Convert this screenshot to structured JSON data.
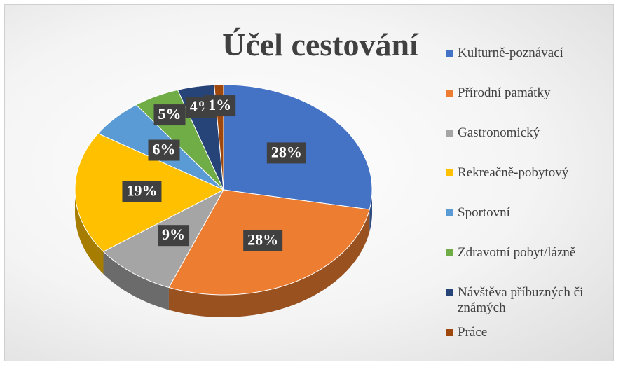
{
  "chart_data": {
    "type": "pie",
    "title": "Účel cestování",
    "categories": [
      "Kulturně-poznávací",
      "Přírodní památky",
      "Gastronomický",
      "Rekreačně-pobytový",
      "Sportovní",
      "Zdravotní pobyt/lázně",
      "Návštěva příbuzných či známých",
      "Práce"
    ],
    "values": [
      28,
      28,
      9,
      19,
      6,
      5,
      4,
      1
    ],
    "value_labels": [
      "28%",
      "28%",
      "9%",
      "19%",
      "6%",
      "5%",
      "4%",
      "1%"
    ],
    "colors": [
      "#4472c4",
      "#ed7d31",
      "#a5a5a5",
      "#ffc000",
      "#5b9bd5",
      "#70ad47",
      "#264478",
      "#9e480e"
    ],
    "legend": "right"
  }
}
